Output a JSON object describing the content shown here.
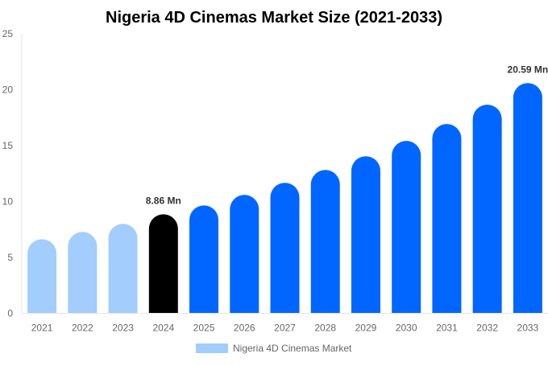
{
  "chart_data": {
    "type": "bar",
    "title": "Nigeria 4D Cinemas Market Size (2021-2033)",
    "xlabel": "",
    "ylabel": "",
    "ylim": [
      0,
      25
    ],
    "yticks": [
      0,
      5,
      10,
      15,
      20,
      25
    ],
    "grid": false,
    "legend_placement": "bottom",
    "categories": [
      "2021",
      "2022",
      "2023",
      "2024",
      "2025",
      "2026",
      "2027",
      "2028",
      "2029",
      "2030",
      "2031",
      "2032",
      "2033"
    ],
    "series": [
      {
        "name": "Nigeria 4D Cinemas Market",
        "values": [
          6.63,
          7.28,
          8.0,
          8.86,
          9.65,
          10.59,
          11.67,
          12.82,
          14.05,
          15.42,
          16.93,
          18.66,
          20.59
        ]
      }
    ],
    "data_labels": [
      {
        "category": "2024",
        "text": "8.86 Mn"
      },
      {
        "category": "2033",
        "text": "20.59 Mn"
      }
    ],
    "colors": {
      "historical": "#a2cdfd",
      "base_year": "#000000",
      "forecast": "#0066ff",
      "legend": "#a2cdfd"
    }
  }
}
